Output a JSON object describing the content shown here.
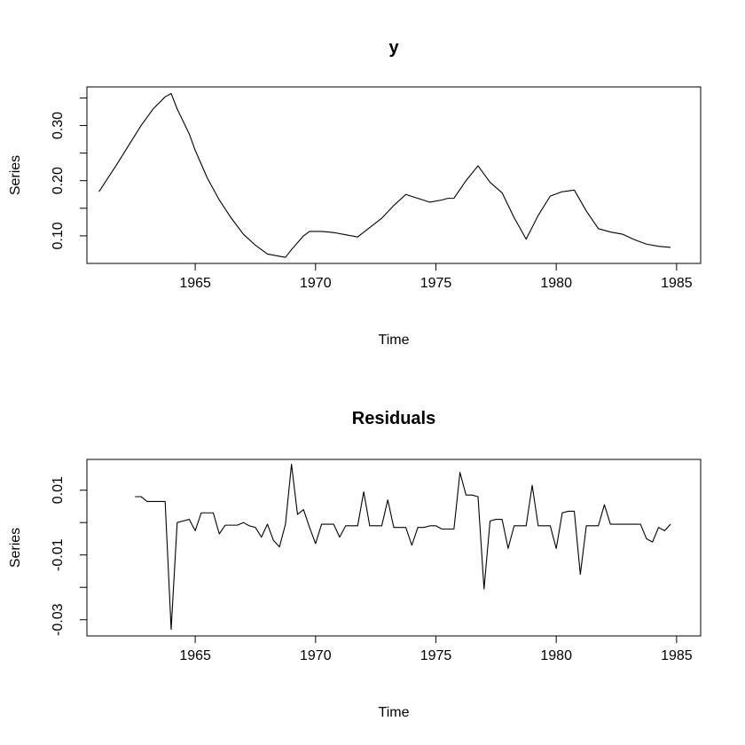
{
  "chart_data": [
    {
      "type": "line",
      "title": "y",
      "xlabel": "Time",
      "ylabel": "Series",
      "xlim": [
        1960.5,
        1986
      ],
      "ylim": [
        0.05,
        0.37
      ],
      "grid": false,
      "x_ticks": [
        1965,
        1970,
        1975,
        1980,
        1985
      ],
      "x_tick_labels": [
        "1965",
        "1970",
        "1975",
        "1980",
        "1985"
      ],
      "y_ticks": [
        0.1,
        0.15,
        0.2,
        0.25,
        0.3,
        0.35
      ],
      "y_tick_labels": [
        {
          "value": 0.1,
          "label": "0.10"
        },
        {
          "value": 0.2,
          "label": "0.20"
        },
        {
          "value": 0.3,
          "label": "0.30"
        }
      ],
      "series": [
        {
          "x": [
            1961.0,
            1961.75,
            1962.25,
            1962.75,
            1963.25,
            1963.75,
            1964.0,
            1964.25,
            1964.75,
            1965.0,
            1965.5,
            1966.0,
            1966.5,
            1967.0,
            1967.5,
            1968.0,
            1968.75,
            1969.0,
            1969.5,
            1969.75,
            1970.25,
            1970.75,
            1971.25,
            1971.75,
            1972.25,
            1972.75,
            1973.25,
            1973.75,
            1974.25,
            1974.75,
            1975.25,
            1975.5,
            1975.75,
            1976.25,
            1976.75,
            1977.25,
            1977.75,
            1978.25,
            1978.75,
            1979.25,
            1979.75,
            1980.25,
            1980.75,
            1981.25,
            1981.75,
            1982.25,
            1982.75,
            1983.25,
            1983.75,
            1984.25,
            1984.75
          ],
          "values": [
            0.18,
            0.23,
            0.265,
            0.3,
            0.33,
            0.352,
            0.358,
            0.33,
            0.285,
            0.255,
            0.205,
            0.165,
            0.132,
            0.103,
            0.083,
            0.067,
            0.061,
            0.075,
            0.1,
            0.108,
            0.108,
            0.106,
            0.102,
            0.098,
            0.115,
            0.132,
            0.155,
            0.175,
            0.168,
            0.161,
            0.165,
            0.168,
            0.168,
            0.2,
            0.227,
            0.197,
            0.178,
            0.133,
            0.094,
            0.137,
            0.172,
            0.18,
            0.183,
            0.145,
            0.113,
            0.107,
            0.103,
            0.093,
            0.085,
            0.081,
            0.079
          ]
        }
      ]
    },
    {
      "type": "line",
      "title": "Residuals",
      "xlabel": "Time",
      "ylabel": "Series",
      "xlim": [
        1960.5,
        1986
      ],
      "ylim": [
        -0.035,
        0.0195
      ],
      "grid": false,
      "x_ticks": [
        1965,
        1970,
        1975,
        1980,
        1985
      ],
      "x_tick_labels": [
        "1965",
        "1970",
        "1975",
        "1980",
        "1985"
      ],
      "y_ticks": [
        -0.03,
        -0.02,
        -0.01,
        0.0,
        0.01
      ],
      "y_tick_labels": [
        {
          "value": -0.03,
          "label": "-0.03"
        },
        {
          "value": -0.01,
          "label": "-0.01"
        },
        {
          "value": 0.01,
          "label": "0.01"
        }
      ],
      "series": [
        {
          "x": [
            1962.5,
            1962.75,
            1963.0,
            1963.25,
            1963.5,
            1963.75,
            1964.0,
            1964.25,
            1964.5,
            1964.75,
            1965.0,
            1965.25,
            1965.5,
            1965.75,
            1966.0,
            1966.25,
            1966.5,
            1966.75,
            1967.0,
            1967.25,
            1967.5,
            1967.75,
            1968.0,
            1968.25,
            1968.5,
            1968.75,
            1969.0,
            1969.25,
            1969.5,
            1969.75,
            1970.0,
            1970.25,
            1970.5,
            1970.75,
            1971.0,
            1971.25,
            1971.5,
            1971.75,
            1972.0,
            1972.25,
            1972.5,
            1972.75,
            1973.0,
            1973.25,
            1973.5,
            1973.75,
            1974.0,
            1974.25,
            1974.5,
            1974.75,
            1975.0,
            1975.25,
            1975.5,
            1975.75,
            1976.0,
            1976.25,
            1976.5,
            1976.75,
            1977.0,
            1977.25,
            1977.5,
            1977.75,
            1978.0,
            1978.25,
            1978.5,
            1978.75,
            1979.0,
            1979.25,
            1979.5,
            1979.75,
            1980.0,
            1980.25,
            1980.5,
            1980.75,
            1981.0,
            1981.25,
            1981.5,
            1981.75,
            1982.0,
            1982.25,
            1982.5,
            1982.75,
            1983.0,
            1983.25,
            1983.5,
            1983.75,
            1984.0,
            1984.25,
            1984.5,
            1984.75
          ],
          "values": [
            0.008,
            0.008,
            0.0065,
            0.0065,
            0.0065,
            0.0065,
            -0.033,
            0.0,
            0.0005,
            0.001,
            -0.0025,
            0.003,
            0.003,
            0.003,
            -0.0035,
            -0.0008,
            -0.0008,
            -0.0008,
            0.0,
            -0.001,
            -0.0015,
            -0.0045,
            -0.0005,
            -0.0055,
            -0.0075,
            -0.0005,
            0.018,
            0.0025,
            0.004,
            -0.0015,
            -0.0065,
            -0.0005,
            -0.0005,
            -0.0005,
            -0.0045,
            -0.001,
            -0.001,
            -0.001,
            0.0095,
            -0.001,
            -0.001,
            -0.001,
            0.007,
            -0.0015,
            -0.0015,
            -0.0015,
            -0.007,
            -0.0015,
            -0.0015,
            -0.001,
            -0.001,
            -0.002,
            -0.002,
            -0.002,
            0.0155,
            0.0085,
            0.0085,
            0.008,
            -0.0205,
            0.0005,
            0.001,
            0.001,
            -0.008,
            -0.001,
            -0.001,
            -0.001,
            0.0115,
            -0.001,
            -0.001,
            -0.001,
            -0.008,
            0.003,
            0.0035,
            0.0035,
            -0.016,
            -0.001,
            -0.001,
            -0.001,
            0.0055,
            -0.0005,
            -0.0005,
            -0.0005,
            -0.0005,
            -0.0005,
            -0.0005,
            -0.005,
            -0.006,
            -0.0015,
            -0.0025,
            -0.0005
          ]
        }
      ]
    }
  ]
}
